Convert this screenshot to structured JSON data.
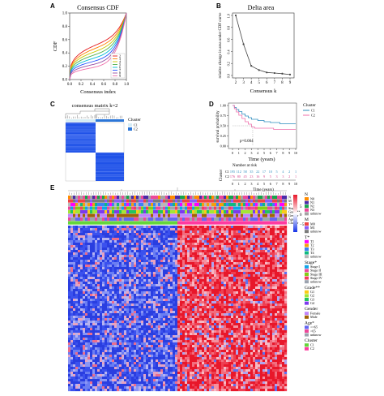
{
  "panels": {
    "A": {
      "label": "A",
      "title": "Consensus CDF",
      "xlabel": "Consensus index",
      "ylabel": "CDF",
      "xticks": [
        "0.0",
        "0.2",
        "0.4",
        "0.6",
        "0.8",
        "1.0"
      ],
      "yticks": [
        "0.0",
        "0.2",
        "0.4",
        "0.6",
        "0.8",
        "1.0"
      ],
      "legend": [
        "2",
        "3",
        "4",
        "5",
        "6",
        "7",
        "8",
        "9"
      ],
      "colors": [
        "#e41a1c",
        "#ff7f00",
        "#c8c800",
        "#4daf4a",
        "#00bcd4",
        "#1f4fff",
        "#984ea3",
        "#f06eaa"
      ]
    },
    "B": {
      "label": "B",
      "title": "Delta area",
      "xlabel": "Consensus k",
      "ylabel": "relative change in area under CDF curve",
      "xticks": [
        "2",
        "3",
        "4",
        "5",
        "6",
        "7",
        "8",
        "9"
      ],
      "yticks": [
        "0.0",
        "0.2",
        "0.4",
        "0.6",
        "0.8",
        "1.0"
      ]
    },
    "C": {
      "label": "C",
      "title": "consensus matrix k=2",
      "legend_title": "Cluster",
      "legend": [
        "C1",
        "C2"
      ],
      "legend_colors": [
        "#d5ecf5",
        "#2c76d8"
      ]
    },
    "D": {
      "label": "D",
      "ylabel": "survival probability",
      "xlabel": "Time (years)",
      "pvalue": "p=0.004",
      "legend_title": "Cluster",
      "legend": [
        "C1",
        "C2"
      ],
      "legend_colors": [
        "#2b8cbe",
        "#f06eaa"
      ],
      "xticks": [
        "0",
        "1",
        "2",
        "3",
        "4",
        "5",
        "6",
        "7",
        "8",
        "9",
        "10"
      ],
      "yticks": [
        "0.00",
        "0.25",
        "0.50",
        "0.75",
        "1.00"
      ],
      "risk_title": "Number at risk",
      "risk_axis": "Cluster",
      "risk_labels": [
        "C1",
        "C2"
      ],
      "risk_C1": [
        "195",
        "112",
        "58",
        "35",
        "22",
        "17",
        "10",
        "5",
        "4",
        "2",
        "1"
      ],
      "risk_C2": [
        "176",
        "80",
        "45",
        "23",
        "16",
        "9",
        "5",
        "3",
        "3",
        "2",
        "1"
      ],
      "risk_xlabel": "Time (years)"
    },
    "E": {
      "label": "E",
      "row_labels": [
        "N",
        "M",
        "T*",
        "Stage*",
        "Grade**",
        "Gender",
        "Age*",
        "Cluster"
      ],
      "color_scale": [
        "5",
        "0",
        "−5"
      ],
      "legends": [
        {
          "title": "N",
          "items": [
            "N0",
            "N1",
            "N2",
            "N3",
            "unknow"
          ],
          "colors": [
            "#ff8c00",
            "#4b2aa8",
            "#16a34a",
            "#ec4899",
            "#a3a3a3"
          ]
        },
        {
          "title": "M",
          "items": [
            "M0",
            "M1",
            "unknow"
          ],
          "colors": [
            "#ef4444",
            "#8b5cf6",
            "#7b7b7b"
          ]
        },
        {
          "title": "T*",
          "items": [
            "T1",
            "T2",
            "T3",
            "T4",
            "unknow"
          ],
          "colors": [
            "#ff00ff",
            "#f59e0b",
            "#3b82f6",
            "#10b981",
            "#b8b8b8"
          ]
        },
        {
          "title": "Stage*",
          "items": [
            "Stage I",
            "Stage II",
            "Stage III",
            "Stage IV",
            "unknow"
          ],
          "colors": [
            "#0ea5e9",
            "#ec4899",
            "#84cc16",
            "#f43f5e",
            "#9ca3af"
          ]
        },
        {
          "title": "Grade**",
          "items": [
            "G1",
            "G2",
            "G3",
            "G4"
          ],
          "colors": [
            "#facc15",
            "#a3e635",
            "#22c55e",
            "#7c3aed"
          ]
        },
        {
          "title": "Gender",
          "items": [
            "Female",
            "Male"
          ],
          "colors": [
            "#c084fc",
            "#a16207"
          ]
        },
        {
          "title": "Age*",
          "items": [
            "<=65",
            ">65",
            "unknow"
          ],
          "colors": [
            "#6366f1",
            "#ec4899",
            "#9ca3af"
          ]
        },
        {
          "title": "Cluster",
          "items": [
            "C1",
            "C2"
          ],
          "colors": [
            "#65d63a",
            "#ff3aa0"
          ]
        }
      ]
    }
  }
}
